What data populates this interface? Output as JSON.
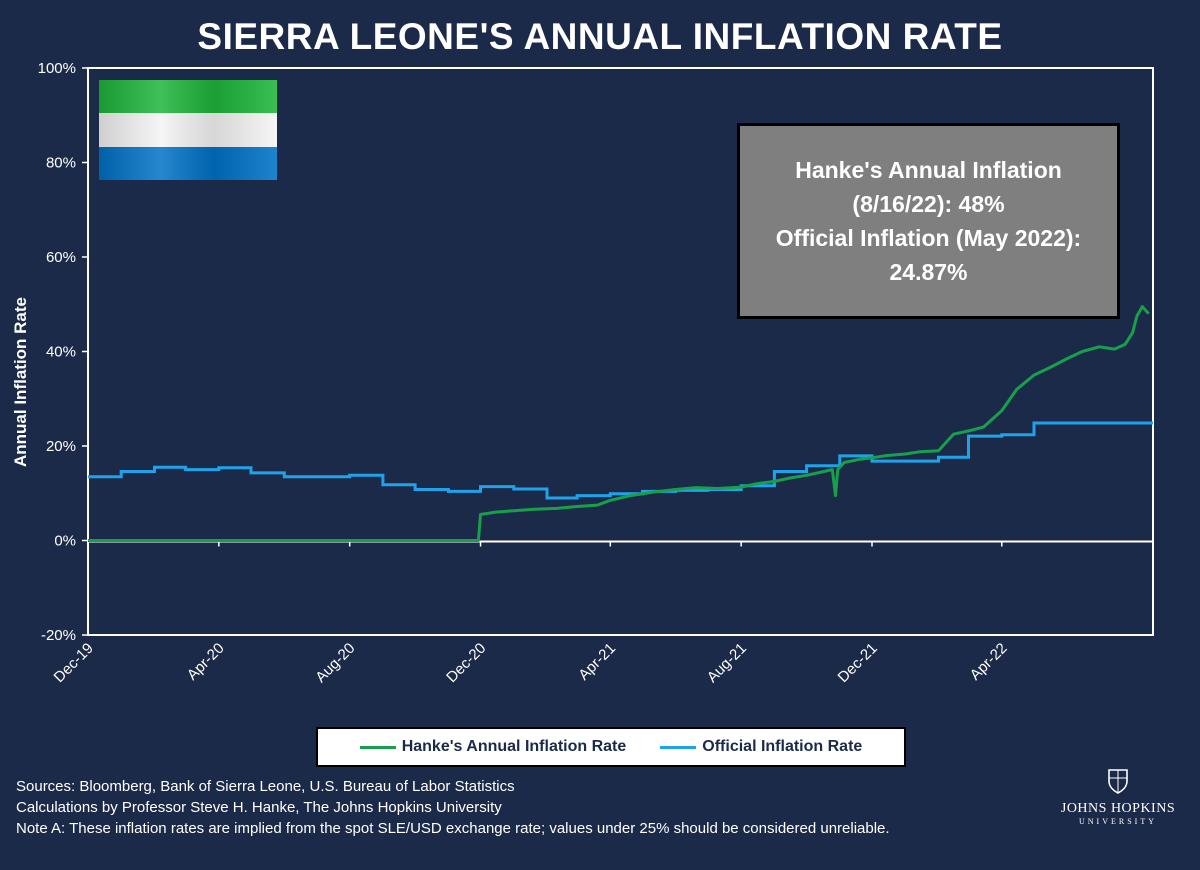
{
  "title": "SIERRA LEONE'S ANNUAL INFLATION RATE",
  "annotation": {
    "line1": "Hanke's Annual Inflation",
    "line2": "(8/16/22): 48%",
    "line3": "Official Inflation (May 2022):",
    "line4": "24.87%"
  },
  "sources": {
    "line1": "Sources: Bloomberg, Bank of Sierra Leone, U.S. Bureau of Labor Statistics",
    "line2": "Calculations by Professor Steve H. Hanke, The Johns Hopkins University",
    "line3": "Note A: These inflation rates are implied from the spot SLE/USD exchange rate; values under 25% should be considered unreliable."
  },
  "logo": {
    "name": "JOHNS HOPKINS",
    "sub": "UNIVERSITY",
    "icon": "jhu-crest-icon"
  },
  "flag": {
    "icon": "sierra-leone-flag-icon",
    "colors": [
      "#1eb53a",
      "#ffffff",
      "#0072c6"
    ]
  },
  "colors": {
    "background": "#1c2a4a",
    "hanke": "#17a04a",
    "official": "#1ea3ea"
  },
  "chart_data": {
    "type": "line",
    "title": "SIERRA LEONE'S ANNUAL INFLATION RATE",
    "xlabel": "",
    "ylabel": "Annual Inflation Rate",
    "ylim": [
      -20,
      100
    ],
    "yticks": [
      "100%",
      "80%",
      "60%",
      "40%",
      "20%",
      "0%",
      "-20%"
    ],
    "yticks_values": [
      100,
      80,
      60,
      40,
      20,
      0,
      -20
    ],
    "xlim": [
      "2019-12-01",
      "2022-08-20"
    ],
    "xticks": [
      "Dec-19",
      "Apr-20",
      "Aug-20",
      "Dec-20",
      "Apr-21",
      "Aug-21",
      "Dec-21",
      "Apr-22"
    ],
    "xticks_dates": [
      "2019-12-01",
      "2020-04-01",
      "2020-08-01",
      "2020-12-01",
      "2021-04-01",
      "2021-08-01",
      "2021-12-01",
      "2022-04-01"
    ],
    "grid": false,
    "legend": "bottom",
    "series": [
      {
        "name": "Hanke's Annual Inflation Rate",
        "color": "#17a04a",
        "x": [
          "2019-12-01",
          "2020-11-29",
          "2020-12-01",
          "2020-12-15",
          "2021-01-01",
          "2021-01-20",
          "2021-02-10",
          "2021-03-01",
          "2021-03-20",
          "2021-04-01",
          "2021-04-20",
          "2021-05-10",
          "2021-06-01",
          "2021-06-20",
          "2021-07-10",
          "2021-08-01",
          "2021-08-15",
          "2021-09-01",
          "2021-09-15",
          "2021-10-01",
          "2021-10-15",
          "2021-10-25",
          "2021-10-28",
          "2021-10-30",
          "2021-11-05",
          "2021-11-20",
          "2021-12-01",
          "2021-12-15",
          "2022-01-01",
          "2022-01-15",
          "2022-02-01",
          "2022-02-15",
          "2022-03-01",
          "2022-03-15",
          "2022-04-01",
          "2022-04-15",
          "2022-05-01",
          "2022-05-15",
          "2022-06-01",
          "2022-06-15",
          "2022-07-01",
          "2022-07-15",
          "2022-07-25",
          "2022-08-01",
          "2022-08-05",
          "2022-08-10",
          "2022-08-16"
        ],
        "values": [
          0,
          0,
          5.5,
          6,
          6.3,
          6.6,
          6.8,
          7.2,
          7.5,
          8.5,
          9.5,
          10.2,
          10.8,
          11.2,
          11,
          11.3,
          12,
          12.5,
          13.2,
          13.8,
          14.5,
          15,
          9.5,
          15,
          16.5,
          17.2,
          17.5,
          18,
          18.3,
          18.8,
          19,
          22.5,
          23.2,
          24,
          27.5,
          32,
          35,
          36.5,
          38.5,
          40,
          41,
          40.5,
          41.5,
          44,
          47.5,
          49.5,
          48
        ]
      },
      {
        "name": "Official Inflation Rate",
        "color": "#1ea3ea",
        "x": [
          "2019-12-01",
          "2020-01-01",
          "2020-02-01",
          "2020-03-01",
          "2020-04-01",
          "2020-05-01",
          "2020-06-01",
          "2020-07-01",
          "2020-08-01",
          "2020-09-01",
          "2020-10-01",
          "2020-11-01",
          "2020-12-01",
          "2021-01-01",
          "2021-02-01",
          "2021-03-01",
          "2021-04-01",
          "2021-05-01",
          "2021-06-01",
          "2021-07-01",
          "2021-08-01",
          "2021-09-01",
          "2021-10-01",
          "2021-11-01",
          "2021-12-01",
          "2022-01-01",
          "2022-02-01",
          "2022-03-01",
          "2022-04-01",
          "2022-05-01",
          "2022-08-20"
        ],
        "values": [
          13.5,
          14.6,
          15.5,
          15,
          15.4,
          14.3,
          13.5,
          13.5,
          13.8,
          11.8,
          10.8,
          10.4,
          11.4,
          10.9,
          9,
          9.5,
          9.9,
          10.4,
          10.6,
          10.8,
          11.6,
          14.6,
          15.8,
          17.9,
          16.8,
          16.8,
          17.6,
          22.1,
          22.4,
          24.87,
          24.87
        ]
      }
    ]
  }
}
